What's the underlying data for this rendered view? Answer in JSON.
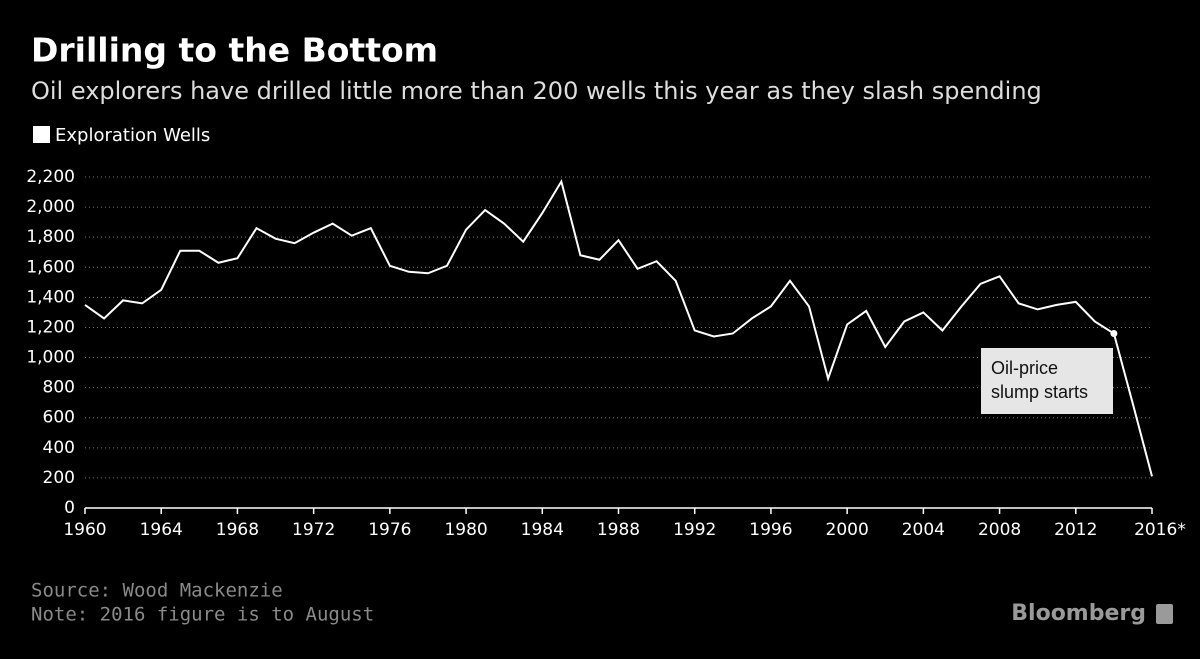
{
  "chart_data": {
    "type": "line",
    "title": "Drilling to the Bottom",
    "subtitle": "Oil explorers have drilled little more than 200 wells this year as they slash spending",
    "x": [
      1960,
      1961,
      1962,
      1963,
      1964,
      1965,
      1966,
      1967,
      1968,
      1969,
      1970,
      1971,
      1972,
      1973,
      1974,
      1975,
      1976,
      1977,
      1978,
      1979,
      1980,
      1981,
      1982,
      1983,
      1984,
      1985,
      1986,
      1987,
      1988,
      1989,
      1990,
      1991,
      1992,
      1993,
      1994,
      1995,
      1996,
      1997,
      1998,
      1999,
      2000,
      2001,
      2002,
      2003,
      2004,
      2005,
      2006,
      2007,
      2008,
      2009,
      2010,
      2011,
      2012,
      2013,
      2014,
      2015,
      2016
    ],
    "series": [
      {
        "name": "Exploration Wells",
        "color": "#ffffff",
        "values": [
          1350,
          1260,
          1380,
          1360,
          1450,
          1710,
          1710,
          1630,
          1660,
          1860,
          1790,
          1760,
          1830,
          1890,
          1810,
          1860,
          1610,
          1570,
          1560,
          1610,
          1850,
          1980,
          1890,
          1770,
          1960,
          2170,
          1680,
          1650,
          1780,
          1590,
          1640,
          1510,
          1180,
          1140,
          1160,
          1260,
          1340,
          1510,
          1340,
          860,
          1220,
          1310,
          1070,
          1240,
          1300,
          1180,
          1340,
          1490,
          1540,
          1360,
          1320,
          1350,
          1370,
          1240,
          1160,
          690,
          210
        ]
      }
    ],
    "xlim": [
      1960,
      2016
    ],
    "xticks": [
      1960,
      1964,
      1968,
      1972,
      1976,
      1980,
      1984,
      1988,
      1992,
      1996,
      2000,
      2004,
      2008,
      2012,
      {
        "value": 2016,
        "label": "2016*"
      }
    ],
    "ylim": [
      0,
      2200
    ],
    "yticks": [
      0,
      200,
      400,
      600,
      800,
      {
        "value": 1000,
        "label": "1,000"
      },
      {
        "value": 1200,
        "label": "1,200"
      },
      {
        "value": 1400,
        "label": "1,400"
      },
      {
        "value": 1600,
        "label": "1,600"
      },
      {
        "value": 1800,
        "label": "1,800"
      },
      {
        "value": 2000,
        "label": "2,000"
      },
      {
        "value": 2200,
        "label": "2,200"
      }
    ],
    "grid": true,
    "annotation": {
      "x": 2014,
      "lines": [
        "Oil-price",
        "slump starts"
      ]
    },
    "source": "Source: Wood Mackenzie",
    "note": "Note: 2016 figure is to August",
    "brand": "Bloomberg"
  }
}
